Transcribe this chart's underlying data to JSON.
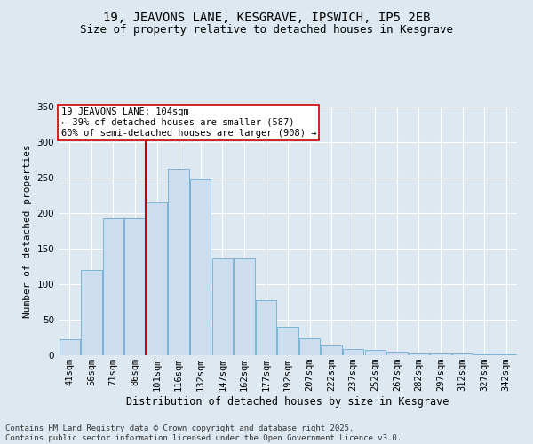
{
  "title": "19, JEAVONS LANE, KESGRAVE, IPSWICH, IP5 2EB",
  "subtitle": "Size of property relative to detached houses in Kesgrave",
  "xlabel": "Distribution of detached houses by size in Kesgrave",
  "ylabel": "Number of detached properties",
  "categories": [
    "41sqm",
    "56sqm",
    "71sqm",
    "86sqm",
    "101sqm",
    "116sqm",
    "132sqm",
    "147sqm",
    "162sqm",
    "177sqm",
    "192sqm",
    "207sqm",
    "222sqm",
    "237sqm",
    "252sqm",
    "267sqm",
    "282sqm",
    "297sqm",
    "312sqm",
    "327sqm",
    "342sqm"
  ],
  "values": [
    22,
    120,
    193,
    193,
    215,
    263,
    248,
    136,
    136,
    78,
    40,
    24,
    14,
    9,
    7,
    5,
    3,
    3,
    2,
    1,
    1
  ],
  "bar_color": "#ccddf0",
  "bar_edge_color": "#7ab4d8",
  "red_line_x": 4.5,
  "annotation_title": "19 JEAVONS LANE: 104sqm",
  "annotation_line1": "← 39% of detached houses are smaller (587)",
  "annotation_line2": "60% of semi-detached houses are larger (908) →",
  "annotation_box_facecolor": "#ffffff",
  "annotation_box_edgecolor": "#cc0000",
  "red_line_color": "#cc0000",
  "ylim": [
    0,
    350
  ],
  "yticks": [
    0,
    50,
    100,
    150,
    200,
    250,
    300,
    350
  ],
  "bg_color": "#dde8f0",
  "plot_bg_color": "#dde8f0",
  "grid_color": "#ffffff",
  "footer_line1": "Contains HM Land Registry data © Crown copyright and database right 2025.",
  "footer_line2": "Contains public sector information licensed under the Open Government Licence v3.0.",
  "title_fontsize": 10,
  "subtitle_fontsize": 9,
  "annot_fontsize": 7.5,
  "xlabel_fontsize": 8.5,
  "ylabel_fontsize": 8,
  "tick_fontsize": 7.5,
  "footer_fontsize": 6.5
}
